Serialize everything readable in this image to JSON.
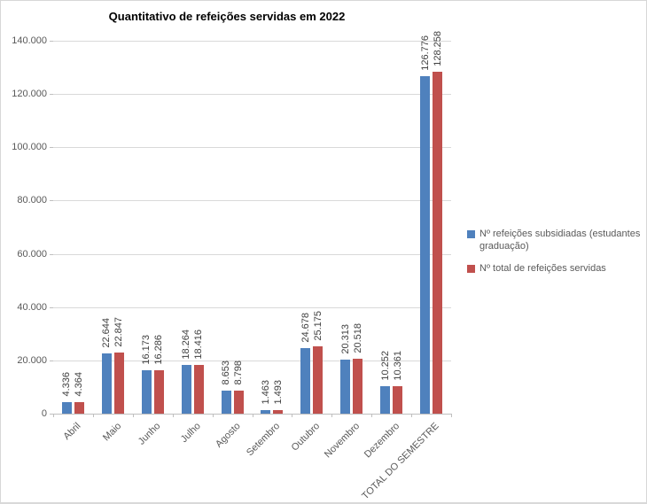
{
  "chart_data": {
    "type": "bar",
    "title": "Quantitativo de refeições servidas em 2022",
    "categories": [
      "Abril",
      "Maio",
      "Junho",
      "Julho",
      "Agosto",
      "Setembro",
      "Outubro",
      "Novembro",
      "Dezembro",
      "TOTAL DO SEMESTRE"
    ],
    "series": [
      {
        "name": "Nº refeições subsidiadas (estudantes graduação)",
        "color": "#4F81BD",
        "values": [
          4336,
          22644,
          16173,
          18264,
          8653,
          1463,
          24678,
          20313,
          10252,
          126776
        ],
        "labels": [
          "4.336",
          "22.644",
          "16.173",
          "18.264",
          "8.653",
          "1.463",
          "24.678",
          "20.313",
          "10.252",
          "126.776"
        ]
      },
      {
        "name": "Nº total de refeições servidas",
        "color": "#C0504D",
        "values": [
          4364,
          22847,
          16286,
          18416,
          8798,
          1493,
          25175,
          20518,
          10361,
          128258
        ],
        "labels": [
          "4.364",
          "22.847",
          "16.286",
          "18.416",
          "8.798",
          "1.493",
          "25.175",
          "20.518",
          "10.361",
          "128.258"
        ]
      }
    ],
    "y_axis": {
      "min": 0,
      "max": 140000,
      "step": 20000,
      "tick_labels": [
        "0",
        "20.000",
        "40.000",
        "60.000",
        "80.000",
        "100.000",
        "120.000",
        "140.000"
      ]
    },
    "grid": true,
    "legend_position": "right"
  },
  "colors": {
    "grid": "#D9D9D9",
    "axis": "#BFBFBF",
    "value_label": "#3F3F3F",
    "axis_text": "#595959",
    "title": "#000000",
    "series_blue": "#4F81BD",
    "series_red": "#C0504D"
  }
}
